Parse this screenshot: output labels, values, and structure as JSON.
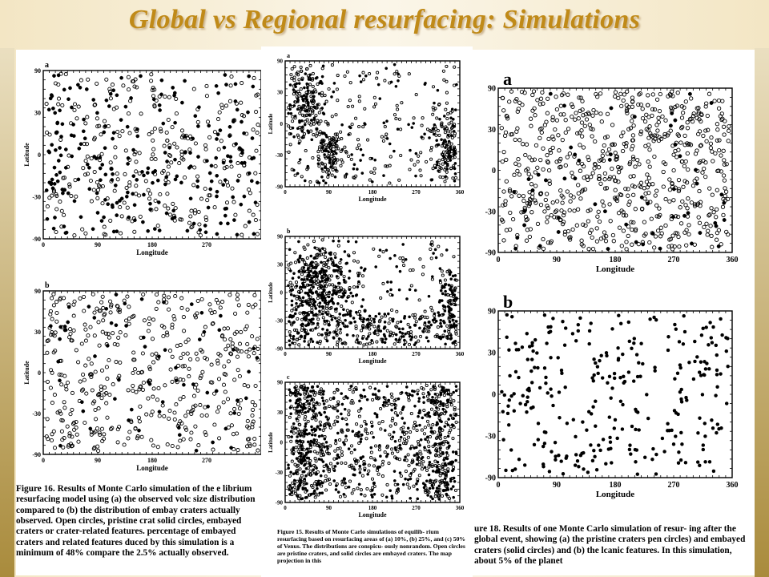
{
  "slide": {
    "title": "Global vs Regional resurfacing: Simulations"
  },
  "panels": {
    "fig16": {
      "a": {
        "letter": "a",
        "ylabel": "Latitude",
        "xlabel": "Longitude",
        "yticks": [
          "90",
          "30",
          "0",
          "-30",
          "-90"
        ],
        "xticks": [
          "0",
          "90",
          "180",
          "270"
        ]
      },
      "b": {
        "letter": "b",
        "ylabel": "Latitude",
        "xlabel": "Longitude",
        "yticks": [
          "90",
          "30",
          "0",
          "-30",
          "-90"
        ],
        "xticks": [
          "0",
          "90",
          "180",
          "270"
        ]
      }
    },
    "fig15": {
      "a": {
        "letter": "a",
        "ylabel": "Latitude",
        "xlabel": "Longitude",
        "yticks": [
          "90",
          "30",
          "0",
          "-30",
          "-90"
        ],
        "xticks": [
          "0",
          "90",
          "180",
          "270",
          "360"
        ]
      },
      "b": {
        "letter": "b",
        "ylabel": "Latitude",
        "xlabel": "Longitude",
        "yticks": [
          "90",
          "30",
          "0",
          "-30",
          "-90"
        ],
        "xticks": [
          "0",
          "90",
          "180",
          "270",
          "360"
        ]
      },
      "c": {
        "letter": "c",
        "ylabel": "Latitude",
        "xlabel": "Longitude",
        "yticks": [
          "90",
          "30",
          "0",
          "-30",
          "-90"
        ],
        "xticks": [
          "0",
          "90",
          "180",
          "270",
          "360"
        ]
      }
    },
    "fig18": {
      "a": {
        "letter": "a",
        "xlabel": "Longitude",
        "yticks": [
          "90",
          "30",
          "0",
          "-30",
          "-90"
        ],
        "xticks": [
          "0",
          "90",
          "180",
          "270",
          "360"
        ]
      },
      "b": {
        "letter": "b",
        "xlabel": "Longitude",
        "yticks": [
          "90",
          "30",
          "0",
          "-30",
          "-90"
        ],
        "xticks": [
          "0",
          "90",
          "180",
          "270",
          "360"
        ]
      }
    }
  },
  "captions": {
    "fig16": {
      "label": "Figure 16.",
      "text": "Results of Monte Carlo simulation of the e librium resurfacing model using (a) the observed volc size distribution compared to (b) the distribution of embay craters actually observed. Open circles, pristine crat solid circles, embayed craters or crater-related features. percentage of embayed craters and related features duced by this simulation is a minimum of 48% compare the 2.5% actually observed."
    },
    "fig15": {
      "label": "Figure 15.",
      "text": "Results of Monte Carlo simulations of equilib- rium resurfacing based on resurfacing areas of (a) 10%, (b) 25%, and (c) 50% of Venus. The distributions are conspicu- ously nonrandom. Open circles are pristine craters, and solid circles are embayed craters. The map projection in this"
    },
    "fig18": {
      "label": "ure 18.",
      "text": "Results of one Monte Carlo simulation of resur- ing after the global event, showing (a) the pristine craters pen circles) and embayed craters (solid circles) and (b) the lcanic features. In this simulation, about 5% of the planet"
    }
  },
  "colors": {
    "title": "#c08a18",
    "border": "#a98b3c",
    "ink": "#000000"
  }
}
